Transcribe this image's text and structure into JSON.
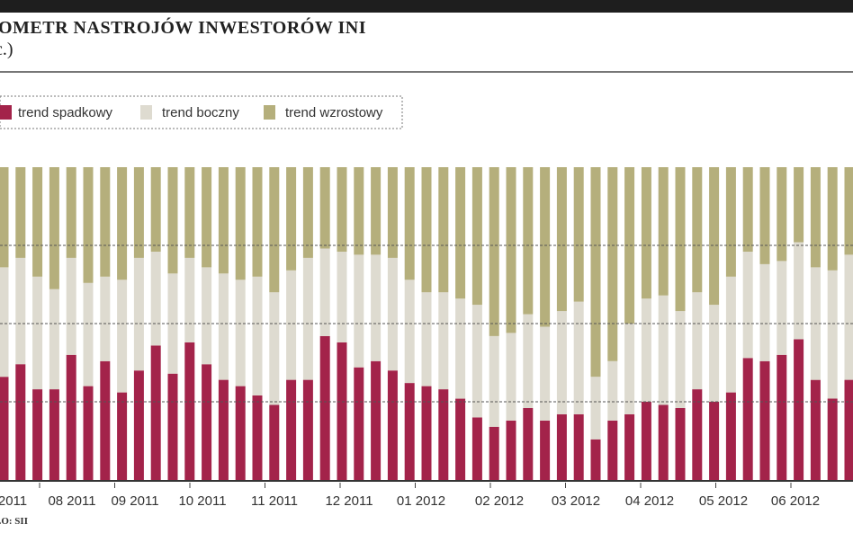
{
  "header": {
    "title": "OMETR NASTROJÓW INWESTORÓW INI",
    "subtitle": "c.)"
  },
  "source": "LO: SII",
  "colors": {
    "down": "#a3234a",
    "side": "#dedbd0",
    "up": "#b5af7c",
    "grid": "#555555",
    "bar": "#1e1e1e"
  },
  "chart_data": {
    "type": "bar",
    "stacked": true,
    "ylim": [
      0,
      100
    ],
    "grid": true,
    "legend_position": "top-left",
    "legend": [
      {
        "name": "trend spadkowy",
        "color": "#a3234a"
      },
      {
        "name": "trend boczny",
        "color": "#dedbd0"
      },
      {
        "name": "trend wzrostowy",
        "color": "#b5af7c"
      }
    ],
    "x_tick_labels": [
      "2011",
      "08 2011",
      "09 2011",
      "10 2011",
      "11 2011",
      "12 2011",
      "01 2012",
      "02 2012",
      "03 2012",
      "04 2012",
      "05 2012",
      "06 2012"
    ],
    "series": [
      {
        "name": "trend spadkowy",
        "values": [
          33,
          37,
          29,
          29,
          40,
          30,
          38,
          28,
          35,
          43,
          34,
          44,
          37,
          32,
          30,
          27,
          24,
          32,
          32,
          46,
          44,
          36,
          38,
          35,
          31,
          30,
          29,
          26,
          20,
          17,
          19,
          23,
          19,
          21,
          21,
          13,
          19,
          21,
          25,
          24,
          23,
          29,
          25,
          28,
          39,
          38,
          40,
          45,
          32,
          26,
          32
        ]
      },
      {
        "name": "trend boczny",
        "values": [
          35,
          34,
          36,
          32,
          31,
          33,
          27,
          36,
          36,
          30,
          32,
          27,
          31,
          34,
          34,
          38,
          36,
          35,
          39,
          28,
          29,
          36,
          34,
          36,
          33,
          30,
          31,
          32,
          36,
          29,
          28,
          30,
          30,
          33,
          36,
          20,
          19,
          29,
          33,
          35,
          31,
          31,
          31,
          37,
          34,
          31,
          30,
          31,
          36,
          41,
          40
        ]
      },
      {
        "name": "trend wzrostowy",
        "values": [
          32,
          29,
          35,
          39,
          29,
          37,
          35,
          36,
          29,
          27,
          34,
          29,
          32,
          34,
          36,
          35,
          40,
          33,
          29,
          26,
          27,
          28,
          28,
          29,
          36,
          40,
          40,
          42,
          44,
          54,
          53,
          47,
          51,
          46,
          43,
          67,
          62,
          50,
          42,
          41,
          46,
          40,
          44,
          35,
          27,
          31,
          30,
          24,
          32,
          33,
          28
        ]
      }
    ]
  }
}
